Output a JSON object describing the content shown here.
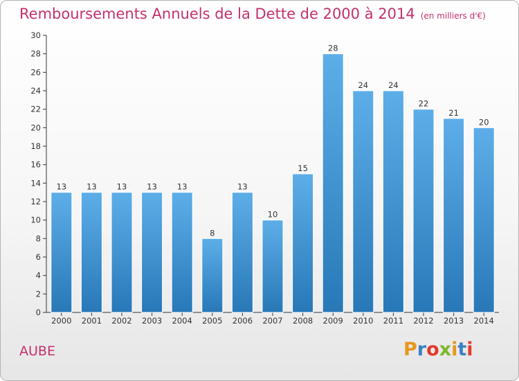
{
  "header": {
    "title": "Remboursements Annuels de la Dette de 2000 à 2014",
    "subtitle": "(en milliers d'€)"
  },
  "footer": {
    "region": "AUBE",
    "logo": "Proxiti"
  },
  "colors": {
    "title": "#c3306d",
    "bar_top": "#5daee8",
    "bar_bottom": "#2878b8",
    "logo_letters": [
      "#e8961e",
      "#3a82c4",
      "#e23a2a",
      "#7cb82a",
      "#e8961e",
      "#3a82c4",
      "#e23a2a"
    ]
  },
  "chart_data": {
    "type": "bar",
    "title": "Remboursements Annuels de la Dette de 2000 à 2014",
    "subtitle": "(en milliers d'€)",
    "xlabel": "",
    "ylabel": "",
    "categories": [
      "2000",
      "2001",
      "2002",
      "2003",
      "2004",
      "2005",
      "2006",
      "2007",
      "2008",
      "2009",
      "2010",
      "2011",
      "2012",
      "2013",
      "2014"
    ],
    "values": [
      13,
      13,
      13,
      13,
      13,
      8,
      13,
      10,
      15,
      28,
      24,
      24,
      22,
      21,
      20
    ],
    "ylim": [
      0,
      30
    ],
    "yticks": [
      0,
      2,
      4,
      6,
      8,
      10,
      12,
      14,
      16,
      18,
      20,
      22,
      24,
      26,
      28,
      30
    ],
    "grid": false,
    "legend": "none"
  }
}
